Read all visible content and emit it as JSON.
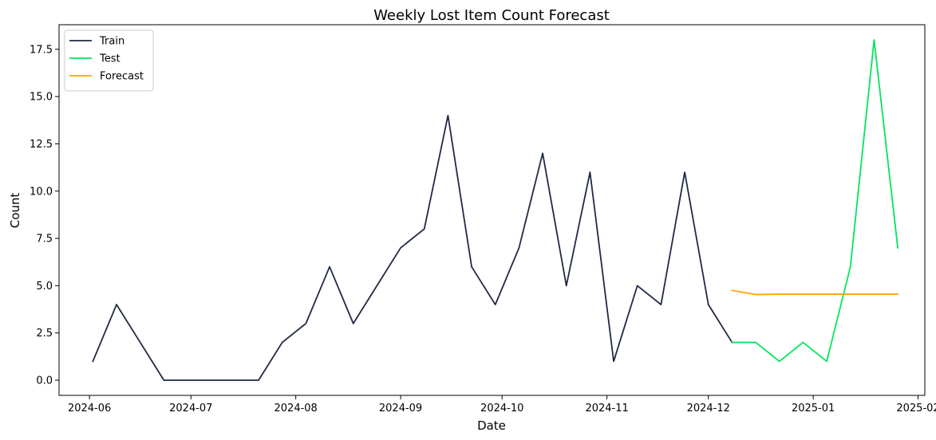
{
  "chart_data": {
    "type": "line",
    "title": "Weekly Lost Item Count Forecast",
    "xlabel": "Date",
    "ylabel": "Count",
    "xlim": [
      "2024-05-23",
      "2025-02-03"
    ],
    "ylim": [
      -0.8,
      18.8
    ],
    "x_ticks": [
      "2024-06-01",
      "2024-07-01",
      "2024-08-01",
      "2024-09-01",
      "2024-10-01",
      "2024-11-01",
      "2024-12-01",
      "2025-01-01",
      "2025-02-01"
    ],
    "x_tick_labels": [
      "2024-06",
      "2024-07",
      "2024-08",
      "2024-09",
      "2024-10",
      "2024-11",
      "2024-12",
      "2025-01",
      "2025-02"
    ],
    "y_ticks": [
      0,
      2.5,
      5,
      7.5,
      10,
      12.5,
      15,
      17.5
    ],
    "y_tick_labels": [
      "0.0",
      "2.5",
      "5.0",
      "7.5",
      "10.0",
      "12.5",
      "15.0",
      "17.5"
    ],
    "grid": false,
    "legend_position": "top-left",
    "series": [
      {
        "name": "Train",
        "color": "#1f2a44",
        "points": [
          {
            "x": "2024-06-02",
            "y": 1
          },
          {
            "x": "2024-06-09",
            "y": 4
          },
          {
            "x": "2024-06-16",
            "y": 2
          },
          {
            "x": "2024-06-23",
            "y": 0
          },
          {
            "x": "2024-06-30",
            "y": 0
          },
          {
            "x": "2024-07-07",
            "y": 0
          },
          {
            "x": "2024-07-14",
            "y": 0
          },
          {
            "x": "2024-07-21",
            "y": 0
          },
          {
            "x": "2024-07-28",
            "y": 2
          },
          {
            "x": "2024-08-04",
            "y": 3
          },
          {
            "x": "2024-08-11",
            "y": 6
          },
          {
            "x": "2024-08-18",
            "y": 3
          },
          {
            "x": "2024-08-25",
            "y": 5
          },
          {
            "x": "2024-09-01",
            "y": 7
          },
          {
            "x": "2024-09-08",
            "y": 8
          },
          {
            "x": "2024-09-15",
            "y": 14
          },
          {
            "x": "2024-09-22",
            "y": 6
          },
          {
            "x": "2024-09-29",
            "y": 4
          },
          {
            "x": "2024-10-06",
            "y": 7
          },
          {
            "x": "2024-10-13",
            "y": 12
          },
          {
            "x": "2024-10-20",
            "y": 5
          },
          {
            "x": "2024-10-27",
            "y": 11
          },
          {
            "x": "2024-11-03",
            "y": 1
          },
          {
            "x": "2024-11-10",
            "y": 5
          },
          {
            "x": "2024-11-17",
            "y": 4
          },
          {
            "x": "2024-11-24",
            "y": 11
          },
          {
            "x": "2024-12-01",
            "y": 4
          },
          {
            "x": "2024-12-08",
            "y": 2
          }
        ]
      },
      {
        "name": "Test",
        "color": "#00e65c",
        "points": [
          {
            "x": "2024-12-08",
            "y": 2
          },
          {
            "x": "2024-12-15",
            "y": 2
          },
          {
            "x": "2024-12-22",
            "y": 1
          },
          {
            "x": "2024-12-29",
            "y": 2
          },
          {
            "x": "2025-01-05",
            "y": 1
          },
          {
            "x": "2025-01-12",
            "y": 6
          },
          {
            "x": "2025-01-19",
            "y": 18
          },
          {
            "x": "2025-01-26",
            "y": 7
          }
        ]
      },
      {
        "name": "Forecast",
        "color": "#ffa500",
        "points": [
          {
            "x": "2024-12-08",
            "y": 4.75
          },
          {
            "x": "2024-12-15",
            "y": 4.53
          },
          {
            "x": "2024-12-22",
            "y": 4.55
          },
          {
            "x": "2024-12-29",
            "y": 4.55
          },
          {
            "x": "2025-01-05",
            "y": 4.55
          },
          {
            "x": "2025-01-12",
            "y": 4.55
          },
          {
            "x": "2025-01-19",
            "y": 4.55
          },
          {
            "x": "2025-01-26",
            "y": 4.55
          }
        ]
      }
    ]
  }
}
